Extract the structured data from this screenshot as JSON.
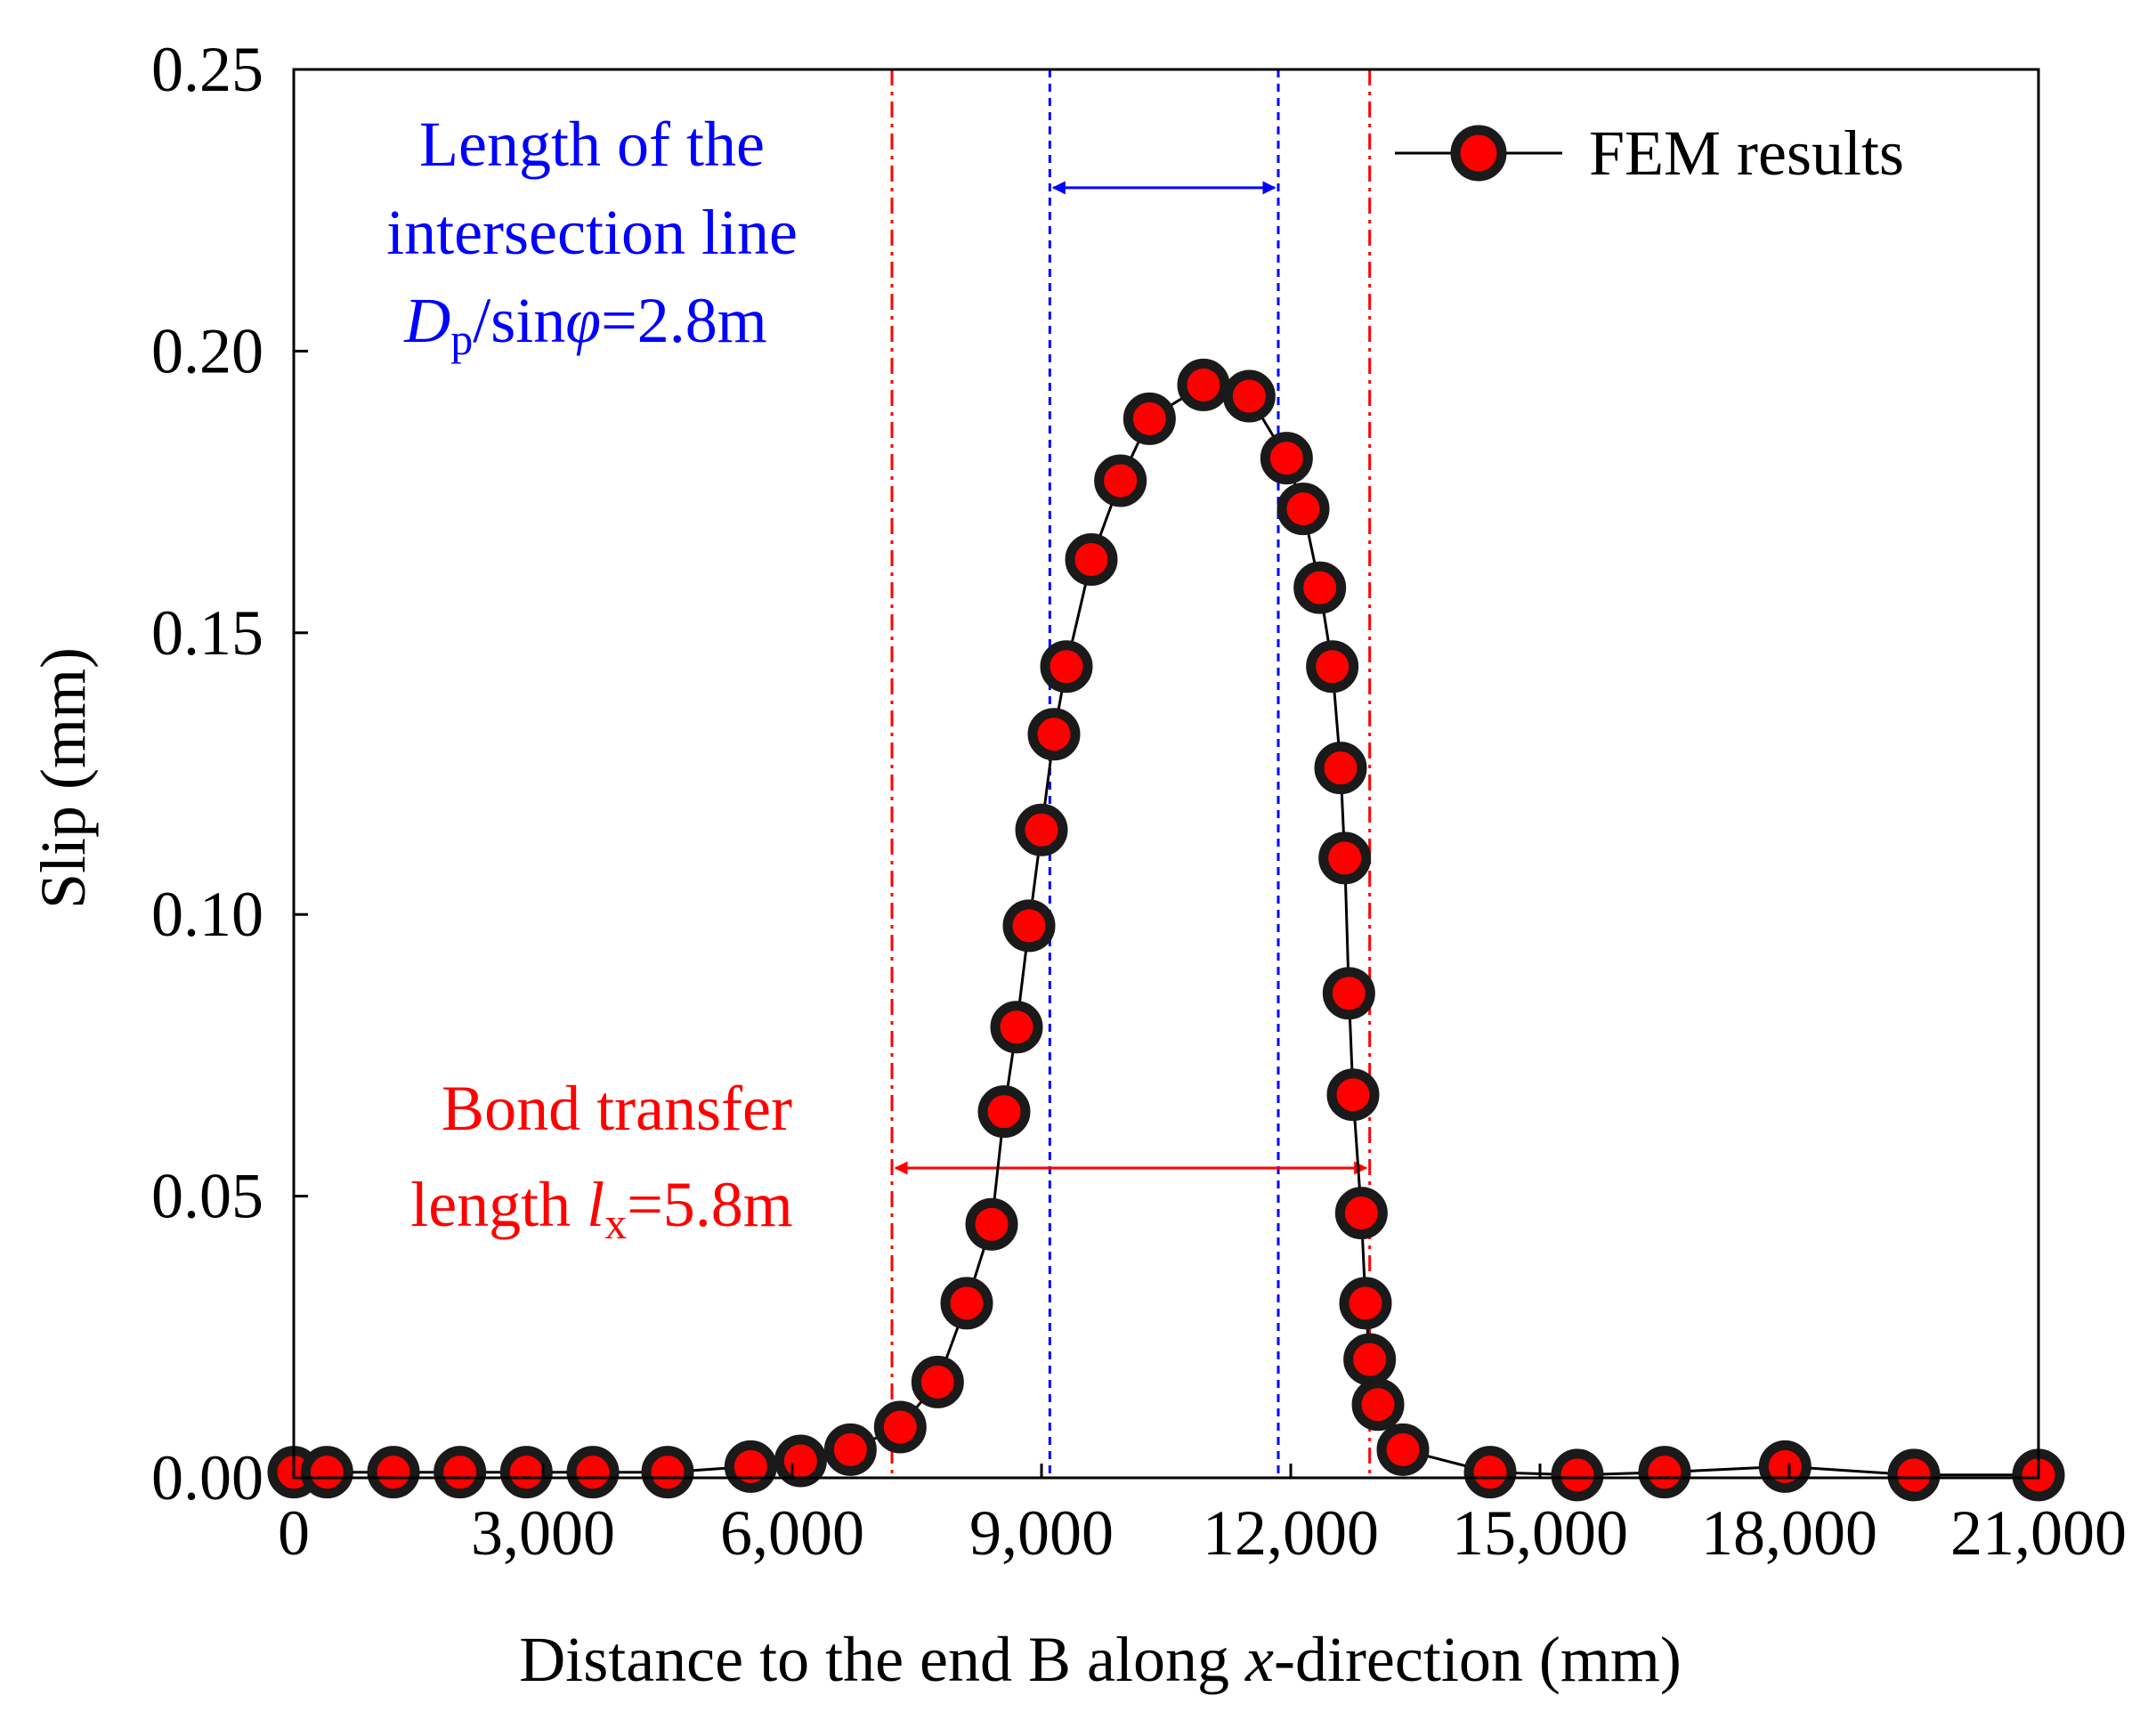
{
  "chart_data": {
    "type": "line",
    "xlabel": {
      "prefix": "Distance to the end B along ",
      "italic": "x",
      "suffix": "-direction (mm)"
    },
    "ylabel": "Slip (mm)",
    "xlim": [
      0,
      21000
    ],
    "ylim": [
      0,
      0.25
    ],
    "xticks": [
      0,
      3000,
      6000,
      9000,
      12000,
      15000,
      18000,
      21000
    ],
    "xtick_labels": [
      "0",
      "3,000",
      "6,000",
      "9,000",
      "12,000",
      "15,000",
      "18,000",
      "21,000"
    ],
    "yticks": [
      0,
      0.05,
      0.1,
      0.15,
      0.2,
      0.25
    ],
    "ytick_labels": [
      "0.00",
      "0.05",
      "0.10",
      "0.15",
      "0.20",
      "0.25"
    ],
    "grid": false,
    "legend": {
      "position": "top-right",
      "entry": "FEM results"
    },
    "series": [
      {
        "name": "FEM results",
        "x": [
          0,
          400,
          1200,
          2000,
          2800,
          3600,
          4500,
          5500,
          6100,
          6700,
          7300,
          7750,
          8100,
          8400,
          8550,
          8700,
          8850,
          9000,
          9150,
          9300,
          9600,
          9950,
          10300,
          10950,
          11500,
          11950,
          12150,
          12350,
          12500,
          12600,
          12650,
          12700,
          12750,
          12850,
          12900,
          12950,
          13050,
          13350,
          14400,
          15450,
          16500,
          17950,
          19500,
          21000
        ],
        "y": [
          0.001,
          0.001,
          0.001,
          0.001,
          0.001,
          0.001,
          0.001,
          0.002,
          0.003,
          0.005,
          0.009,
          0.017,
          0.031,
          0.045,
          0.065,
          0.08,
          0.098,
          0.115,
          0.132,
          0.144,
          0.163,
          0.177,
          0.188,
          0.194,
          0.192,
          0.181,
          0.172,
          0.158,
          0.144,
          0.126,
          0.11,
          0.086,
          0.068,
          0.047,
          0.031,
          0.021,
          0.013,
          0.005,
          0.001,
          0.0005,
          0.001,
          0.002,
          0.0005,
          0.0005
        ]
      }
    ],
    "annotations": {
      "bond_transfer": {
        "color": "#ff0000",
        "x_start": 7200,
        "x_end": 12950,
        "arrow_y": 0.055,
        "line1": "Bond transfer",
        "line2_prefix": "length ",
        "symbol": "l",
        "subscript": "x",
        "value": "=5.8m"
      },
      "intersection": {
        "color": "#0000ff",
        "x_start": 9100,
        "x_end": 11850,
        "arrow_y": 0.229,
        "line1": "Length of the",
        "line2": "intersection line",
        "symbol": "D",
        "subscript": "p",
        "mid": "/sin",
        "phi": "φ",
        "value": "=2.8m"
      }
    }
  }
}
